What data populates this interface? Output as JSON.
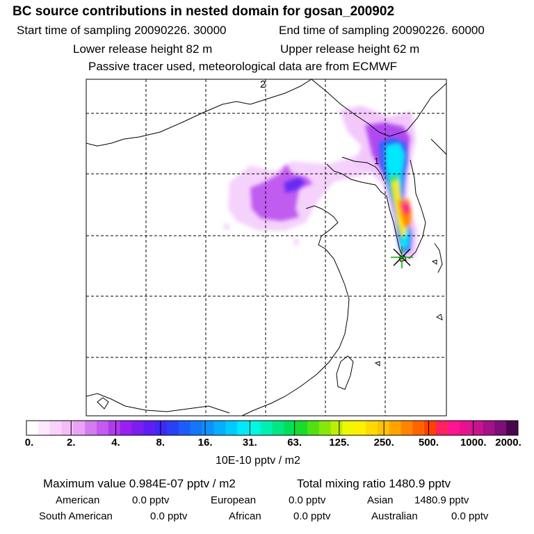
{
  "header": {
    "title": "BC  source contributions in nested domain for gosan_200902",
    "start_time": "Start time of sampling 20090226. 30000",
    "end_time": "End time of sampling 20090226. 60000",
    "lower_height": "Lower release height   82 m",
    "upper_height": "Upper release height   62 m",
    "tracer_note": "Passive tracer used, meteorological data are from ECMWF"
  },
  "map": {
    "grid_label_top": "2",
    "grid_label_mid": "1"
  },
  "colors": {
    "scale": [
      "#ffffff",
      "#fde8ff",
      "#fad1fd",
      "#f5bcf9",
      "#e9a2f6",
      "#d37cf2",
      "#c45af0",
      "#b13aee",
      "#9a1ff0",
      "#7b1ef2",
      "#5f1cf5",
      "#3f28f7",
      "#2a3ff8",
      "#1c5dfa",
      "#1476fb",
      "#0b92fd",
      "#05aefe",
      "#00cbfe",
      "#00e9fd",
      "#00f7e3",
      "#00f0b2",
      "#00e784",
      "#00df56",
      "#17dc2a",
      "#52e011",
      "#88e70a",
      "#bdee06",
      "#eff703",
      "#fff000",
      "#ffd900",
      "#ffc100",
      "#ffa300",
      "#ff8500",
      "#ff6400",
      "#ff4100",
      "#ff2160",
      "#ff1493",
      "#e81290",
      "#c8148c",
      "#a41188",
      "#7d0e7a",
      "#4a064c"
    ]
  },
  "chart_data": {
    "type": "heatmap",
    "title": "BC  source contributions in nested domain for gosan_200902",
    "colorbar": {
      "tick_labels": [
        "0.",
        "2.",
        "4.",
        "8.",
        "16.",
        "31.",
        "63.",
        "125.",
        "250.",
        "500.",
        "1000.",
        "2000."
      ],
      "unit": "10E-10 pptv / m2"
    },
    "receptor": "gosan",
    "grid": "dashed"
  },
  "footer": {
    "max_label": "Maximum value  0.984E-07 pptv / m2",
    "total_label": "Total mixing ratio     1480.9 pptv",
    "american": "American",
    "american_val": "0.0 pptv",
    "european": "European",
    "european_val": "0.0 pptv",
    "asian": "Asian",
    "asian_val": "1480.9 pptv",
    "south_american": "South American",
    "south_american_val": "0.0 pptv",
    "african": "African",
    "african_val": "0.0 pptv",
    "australian": "Australian",
    "australian_val": "0.0 pptv"
  }
}
